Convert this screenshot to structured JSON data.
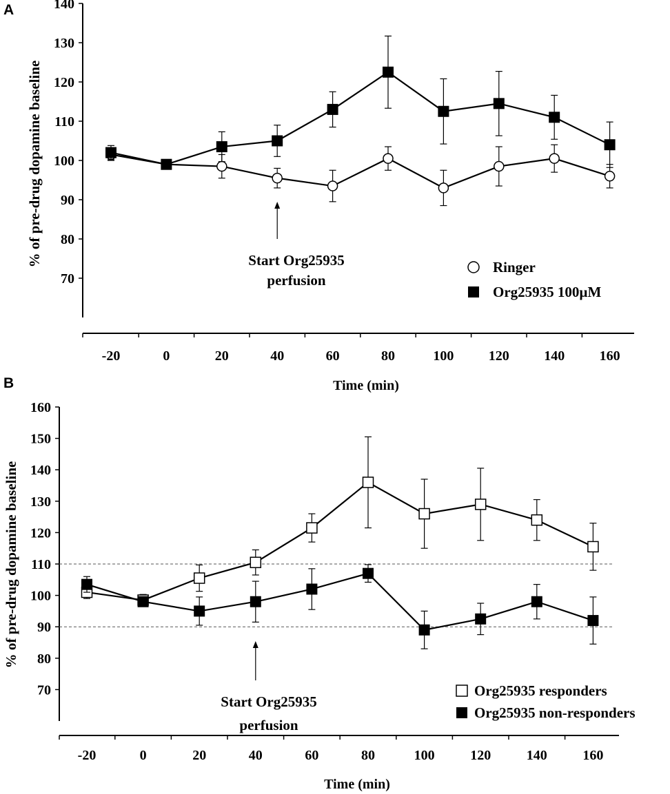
{
  "chart_data": [
    {
      "panel": "A",
      "type": "line",
      "xlabel": "Time (min)",
      "ylabel": "% of pre-drug dopamine baseline",
      "x": [
        -20,
        0,
        20,
        40,
        60,
        80,
        100,
        120,
        140,
        160
      ],
      "x_tick_labels": [
        "-20",
        "0",
        "20",
        "40",
        "60",
        "80",
        "100",
        "120",
        "140",
        "160"
      ],
      "y_ticks": [
        70,
        80,
        90,
        100,
        110,
        120,
        130,
        140
      ],
      "ylim": [
        60,
        140
      ],
      "grid": false,
      "legend_position": "lower-right",
      "series": [
        {
          "name": "Ringer",
          "marker": "open-circle",
          "values": [
            101.5,
            99,
            98.5,
            95.5,
            93.5,
            100.5,
            93,
            98.5,
            100.5,
            96
          ],
          "errors": [
            1.5,
            1,
            3,
            2.5,
            4,
            3,
            4.5,
            5,
            3.5,
            3
          ]
        },
        {
          "name": "Org25935 100µM",
          "marker": "filled-square",
          "values": [
            102,
            99,
            103.5,
            105,
            113,
            122.5,
            112.5,
            114.5,
            111,
            104
          ],
          "errors": [
            1.8,
            1,
            3.8,
            4,
            4.5,
            9.2,
            8.3,
            8.2,
            5.6,
            5.8
          ]
        }
      ],
      "annotation": {
        "x": 40,
        "line1": "Start Org25935",
        "line2": "perfusion"
      }
    },
    {
      "panel": "B",
      "type": "line",
      "xlabel": "Time (min)",
      "ylabel": "% of pre-drug dopamine baseline",
      "x": [
        -20,
        0,
        20,
        40,
        60,
        80,
        100,
        120,
        140,
        160
      ],
      "x_tick_labels": [
        "-20",
        "0",
        "20",
        "40",
        "60",
        "80",
        "100",
        "120",
        "140",
        "160"
      ],
      "y_ticks": [
        70,
        80,
        90,
        100,
        110,
        120,
        130,
        140,
        150,
        160
      ],
      "ylim": [
        60,
        160
      ],
      "grid": false,
      "reference_lines": [
        110,
        90
      ],
      "legend_position": "lower-right",
      "series": [
        {
          "name": "Org25935 responders",
          "marker": "open-square",
          "values": [
            101,
            98.5,
            105.5,
            110.5,
            121.5,
            136,
            126,
            129,
            124,
            115.5
          ],
          "errors": [
            2,
            1.8,
            4.2,
            4,
            4.5,
            14.5,
            11,
            11.5,
            6.5,
            7.5
          ]
        },
        {
          "name": "Org25935 non-responders",
          "marker": "filled-square",
          "values": [
            103.5,
            98,
            95,
            98,
            102,
            107,
            89,
            92.5,
            98,
            92
          ],
          "errors": [
            2.5,
            1.5,
            4.5,
            6.5,
            6.5,
            2.8,
            6,
            5,
            5.5,
            7.5
          ]
        }
      ],
      "annotation": {
        "x": 40,
        "line1": "Start Org25935",
        "line2": "perfusion"
      }
    }
  ]
}
